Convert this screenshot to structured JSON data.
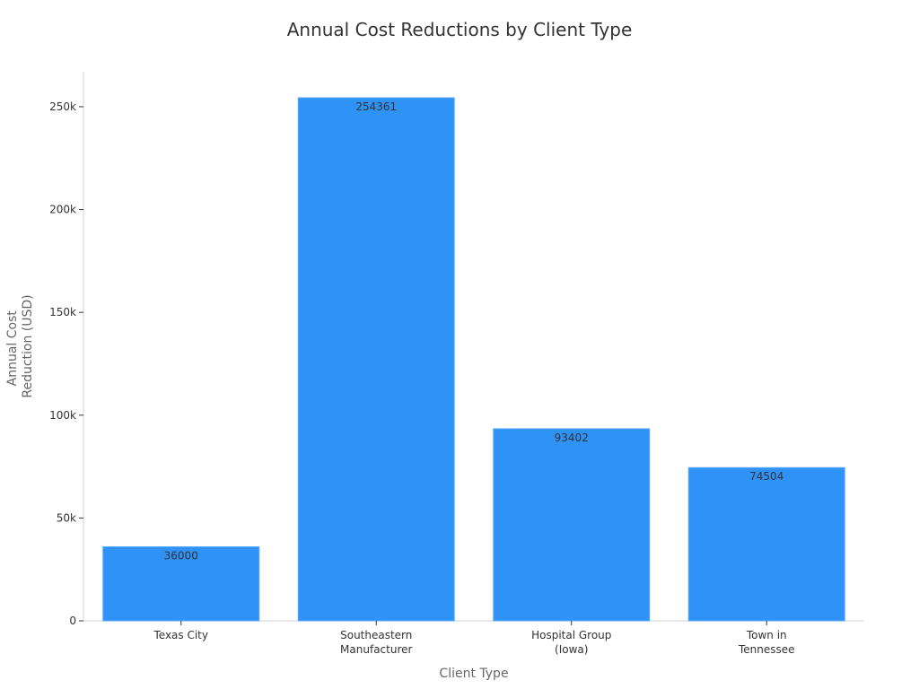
{
  "chart_data": {
    "type": "bar",
    "title": "Annual Cost Reductions by Client Type",
    "xlabel": "Client Type",
    "ylabel": [
      "Annual Cost",
      "Reduction (USD)"
    ],
    "categories": [
      [
        "Texas City"
      ],
      [
        "Southeastern",
        "Manufacturer"
      ],
      [
        "Hospital Group",
        "(Iowa)"
      ],
      [
        "Town in",
        "Tennessee"
      ]
    ],
    "values": [
      36000,
      254361,
      93402,
      74504
    ],
    "data_labels": [
      "36000",
      "254361",
      "93402",
      "74504"
    ],
    "ylim": [
      0,
      267000
    ],
    "yticks": [
      0,
      50000,
      100000,
      150000,
      200000,
      250000
    ],
    "ytick_labels": [
      "0",
      "50k",
      "100k",
      "150k",
      "200k",
      "250k"
    ],
    "bar_color": "#2f92f7",
    "grid": false,
    "legend": "none"
  }
}
